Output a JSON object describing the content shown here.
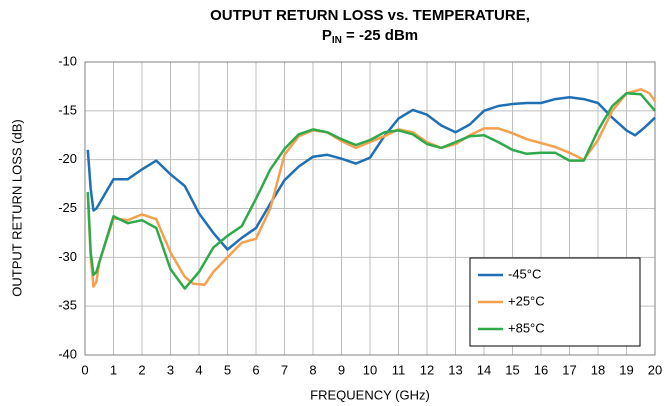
{
  "chart_data": {
    "type": "line",
    "title": "OUTPUT RETURN LOSS vs. TEMPERATURE,",
    "subtitle": {
      "base": "P",
      "sub": "IN",
      "rest": " = -25 dBm"
    },
    "x_label": "FREQUENCY (GHz)",
    "y_label": "OUTPUT RETURN LOSS (dB)",
    "xlim": [
      0,
      20
    ],
    "xticks": [
      0,
      1,
      2,
      3,
      4,
      5,
      6,
      7,
      8,
      9,
      10,
      11,
      12,
      13,
      14,
      15,
      16,
      17,
      18,
      19,
      20
    ],
    "ylim": [
      -40,
      -10
    ],
    "yticks": [
      -10,
      -15,
      -20,
      -25,
      -30,
      -35,
      -40
    ],
    "grid": true,
    "legend": "lower right",
    "series": [
      {
        "name": "-45°C",
        "color": "#1f6fb4",
        "x": [
          0.1,
          0.2,
          0.3,
          0.4,
          0.5,
          1,
          1.5,
          2,
          2.5,
          3,
          3.5,
          4,
          4.5,
          5,
          5.5,
          6,
          6.5,
          7,
          7.5,
          8,
          8.5,
          9,
          9.5,
          10,
          10.5,
          11,
          11.5,
          12,
          12.5,
          13,
          13.5,
          14,
          14.5,
          15,
          15.5,
          16,
          16.5,
          17,
          17.5,
          18,
          18.5,
          19,
          19.3,
          19.6,
          20
        ],
        "values": [
          -19,
          -23,
          -25.2,
          -25,
          -24.5,
          -22,
          -22,
          -21,
          -20.1,
          -21.5,
          -22.7,
          -25.5,
          -27.5,
          -29.2,
          -28,
          -27,
          -24.5,
          -22.1,
          -20.7,
          -19.7,
          -19.5,
          -19.9,
          -20.4,
          -19.8,
          -17.6,
          -15.8,
          -14.9,
          -15.4,
          -16.5,
          -17.2,
          -16.4,
          -15,
          -14.5,
          -14.3,
          -14.2,
          -14.2,
          -13.8,
          -13.6,
          -13.8,
          -14.2,
          -15.7,
          -17,
          -17.5,
          -16.8,
          -15.7
        ]
      },
      {
        "name": "+25°C",
        "color": "#f5a04f",
        "x": [
          0.1,
          0.2,
          0.3,
          0.4,
          0.5,
          1,
          1.5,
          2,
          2.5,
          3,
          3.5,
          3.8,
          4.2,
          4.5,
          5,
          5.5,
          6,
          6.5,
          7,
          7.5,
          8,
          8.5,
          9,
          9.5,
          10,
          10.5,
          11,
          11.5,
          12,
          12.5,
          13,
          13.5,
          14,
          14.5,
          15,
          15.5,
          16,
          16.5,
          17,
          17.5,
          18,
          18.5,
          19,
          19.5,
          19.8,
          20
        ],
        "values": [
          -23.5,
          -30,
          -33,
          -32.5,
          -30.5,
          -26,
          -26.2,
          -25.6,
          -26.1,
          -29.5,
          -32,
          -32.7,
          -32.8,
          -31.5,
          -30,
          -28.5,
          -28.1,
          -25,
          -19.5,
          -17.6,
          -17,
          -17.2,
          -18.1,
          -18.8,
          -18.2,
          -17.6,
          -16.9,
          -17.2,
          -18.2,
          -18.8,
          -18.4,
          -17.5,
          -16.8,
          -16.8,
          -17.3,
          -17.9,
          -18.3,
          -18.7,
          -19.3,
          -20,
          -18,
          -15,
          -13.2,
          -12.8,
          -13.2,
          -14
        ]
      },
      {
        "name": "+85°C",
        "color": "#2eaa4a",
        "x": [
          0.1,
          0.2,
          0.3,
          0.4,
          0.5,
          1,
          1.5,
          2,
          2.5,
          3,
          3.5,
          4,
          4.5,
          5,
          5.5,
          6,
          6.5,
          7,
          7.5,
          8,
          8.5,
          9,
          9.5,
          10,
          10.5,
          11,
          11.5,
          12,
          12.5,
          13,
          13.5,
          14,
          14.5,
          15,
          15.5,
          16,
          16.5,
          17,
          17.5,
          18,
          18.5,
          19,
          19.5,
          20
        ],
        "values": [
          -23.3,
          -29.5,
          -31.8,
          -31.5,
          -30.5,
          -25.8,
          -26.5,
          -26.2,
          -27,
          -31.2,
          -33.2,
          -31.5,
          -29,
          -27.8,
          -26.8,
          -24,
          -21,
          -18.9,
          -17.4,
          -16.9,
          -17.2,
          -17.9,
          -18.5,
          -18,
          -17.2,
          -17,
          -17.4,
          -18.4,
          -18.8,
          -18.2,
          -17.6,
          -17.5,
          -18.2,
          -19,
          -19.4,
          -19.3,
          -19.3,
          -20.1,
          -20.1,
          -17,
          -14.5,
          -13.2,
          -13.3,
          -15
        ]
      }
    ]
  }
}
